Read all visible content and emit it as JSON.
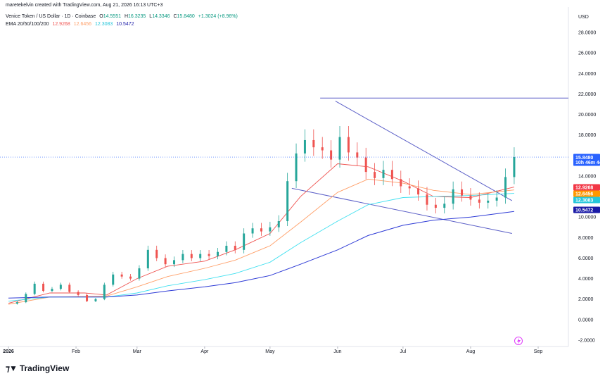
{
  "header": {
    "author_line": "maretekelvin created with TradingView.com, Aug 21, 2026 16:13 UTC+3",
    "symbol": "Venice Token / US Dollar · 1D · Coinbase",
    "o_label": "O",
    "o_value": "14.5551",
    "h_label": "H",
    "h_value": "16.3235",
    "l_label": "L",
    "l_value": "14.3346",
    "c_label": "C",
    "c_value": "15.8480",
    "change": "+1.3024 (+8.96%)",
    "ema_label": "EMA 20/50/100/200",
    "ema20": "12.9268",
    "ema50": "12.6456",
    "ema100": "12.3083",
    "ema200": "10.5472"
  },
  "colors": {
    "up": "#26a69a",
    "down": "#ef5350",
    "ema20": "#ef5350",
    "ema50": "#ff9f68",
    "ema100": "#40e0f0",
    "ema200": "#2e3bd6",
    "trend": "#5b5fc7",
    "price_tag": "#2962ff",
    "header_symbol": "#131722",
    "header_up": "#089981"
  },
  "currency": "USD",
  "brand": "TradingView",
  "chart_data": {
    "type": "candlestick",
    "title": "Venice Token / US Dollar · 1D · Coinbase",
    "yaxis_unit": "USD",
    "ylim": [
      -2,
      29
    ],
    "yticks": [
      "28.0000",
      "26.0000",
      "24.0000",
      "22.0000",
      "20.0000",
      "18.0000",
      "16.0000",
      "14.0000",
      "12.0000",
      "10.0000",
      "8.0000",
      "6.0000",
      "4.0000",
      "2.0000",
      "0.0000",
      "-2.0000"
    ],
    "xticks": [
      "2026",
      "Feb",
      "Mar",
      "Apr",
      "May",
      "Jun",
      "Jul",
      "Aug",
      "Sep"
    ],
    "price_tags": [
      {
        "label": "15.8480",
        "sub": "10h 46m 44s",
        "value": 15.848,
        "color": "#2962ff"
      },
      {
        "label": "12.9268",
        "value": 12.9268,
        "color": "#f23645"
      },
      {
        "label": "12.6456",
        "value": 12.6456,
        "color": "#ff9800"
      },
      {
        "label": "12.3083",
        "value": 12.3083,
        "color": "#26c6da"
      },
      {
        "label": "10.5472",
        "value": 10.5472,
        "color": "#1a1aa6"
      }
    ],
    "close_series": [
      {
        "date": "2026-01-01",
        "close": 1.55
      },
      {
        "date": "2026-01-05",
        "close": 1.7
      },
      {
        "date": "2026-01-09",
        "close": 2.5
      },
      {
        "date": "2026-01-13",
        "close": 3.5
      },
      {
        "date": "2026-01-17",
        "close": 2.8
      },
      {
        "date": "2026-01-21",
        "close": 3.0
      },
      {
        "date": "2026-01-25",
        "close": 3.4
      },
      {
        "date": "2026-01-29",
        "close": 2.7
      },
      {
        "date": "2026-02-02",
        "close": 2.4
      },
      {
        "date": "2026-02-06",
        "close": 1.8
      },
      {
        "date": "2026-02-10",
        "close": 2.0
      },
      {
        "date": "2026-02-14",
        "close": 3.4
      },
      {
        "date": "2026-02-18",
        "close": 4.4
      },
      {
        "date": "2026-02-22",
        "close": 4.2
      },
      {
        "date": "2026-02-26",
        "close": 4.0
      },
      {
        "date": "2026-03-02",
        "close": 5.0
      },
      {
        "date": "2026-03-06",
        "close": 6.8
      },
      {
        "date": "2026-03-10",
        "close": 6.0
      },
      {
        "date": "2026-03-14",
        "close": 5.4
      },
      {
        "date": "2026-03-18",
        "close": 5.8
      },
      {
        "date": "2026-03-22",
        "close": 6.4
      },
      {
        "date": "2026-03-26",
        "close": 6.0
      },
      {
        "date": "2026-03-30",
        "close": 6.4
      },
      {
        "date": "2026-04-03",
        "close": 6.2
      },
      {
        "date": "2026-04-07",
        "close": 6.6
      },
      {
        "date": "2026-04-11",
        "close": 7.2
      },
      {
        "date": "2026-04-15",
        "close": 6.8
      },
      {
        "date": "2026-04-19",
        "close": 8.4
      },
      {
        "date": "2026-04-23",
        "close": 8.9
      },
      {
        "date": "2026-04-27",
        "close": 8.6
      },
      {
        "date": "2026-05-01",
        "close": 9.0
      },
      {
        "date": "2026-05-05",
        "close": 9.6
      },
      {
        "date": "2026-05-09",
        "close": 13.5
      },
      {
        "date": "2026-05-13",
        "close": 16.2
      },
      {
        "date": "2026-05-17",
        "close": 17.5
      },
      {
        "date": "2026-05-21",
        "close": 16.8
      },
      {
        "date": "2026-05-25",
        "close": 16.5
      },
      {
        "date": "2026-05-29",
        "close": 15.6
      },
      {
        "date": "2026-06-02",
        "close": 17.8
      },
      {
        "date": "2026-06-06",
        "close": 16.3
      },
      {
        "date": "2026-06-10",
        "close": 15.8
      },
      {
        "date": "2026-06-14",
        "close": 14.4
      },
      {
        "date": "2026-06-18",
        "close": 13.8
      },
      {
        "date": "2026-06-22",
        "close": 14.6
      },
      {
        "date": "2026-06-26",
        "close": 13.7
      },
      {
        "date": "2026-06-30",
        "close": 13.0
      },
      {
        "date": "2026-07-04",
        "close": 12.8
      },
      {
        "date": "2026-07-08",
        "close": 12.2
      },
      {
        "date": "2026-07-12",
        "close": 11.2
      },
      {
        "date": "2026-07-16",
        "close": 10.9
      },
      {
        "date": "2026-07-20",
        "close": 11.3
      },
      {
        "date": "2026-07-24",
        "close": 12.7
      },
      {
        "date": "2026-07-28",
        "close": 12.1
      },
      {
        "date": "2026-08-01",
        "close": 11.7
      },
      {
        "date": "2026-08-05",
        "close": 11.4
      },
      {
        "date": "2026-08-09",
        "close": 11.6
      },
      {
        "date": "2026-08-13",
        "close": 11.9
      },
      {
        "date": "2026-08-17",
        "close": 13.9
      },
      {
        "date": "2026-08-21",
        "close": 15.848
      }
    ],
    "ema_series": [
      {
        "name": "EMA 20",
        "values": [
          {
            "date": "2026-01-01",
            "value": 1.6
          },
          {
            "date": "2026-01-20",
            "value": 2.6
          },
          {
            "date": "2026-02-05",
            "value": 2.6
          },
          {
            "date": "2026-02-15",
            "value": 2.4
          },
          {
            "date": "2026-03-01",
            "value": 4.0
          },
          {
            "date": "2026-03-15",
            "value": 5.2
          },
          {
            "date": "2026-04-01",
            "value": 5.7
          },
          {
            "date": "2026-04-15",
            "value": 6.8
          },
          {
            "date": "2026-05-01",
            "value": 8.4
          },
          {
            "date": "2026-05-15",
            "value": 12.0
          },
          {
            "date": "2026-06-01",
            "value": 15.2
          },
          {
            "date": "2026-06-15",
            "value": 14.9
          },
          {
            "date": "2026-07-01",
            "value": 13.5
          },
          {
            "date": "2026-07-15",
            "value": 12.0
          },
          {
            "date": "2026-08-01",
            "value": 11.9
          },
          {
            "date": "2026-08-21",
            "value": 12.9268
          }
        ]
      },
      {
        "name": "EMA 50",
        "values": [
          {
            "date": "2026-01-01",
            "value": 1.5
          },
          {
            "date": "2026-01-20",
            "value": 2.2
          },
          {
            "date": "2026-02-15",
            "value": 2.3
          },
          {
            "date": "2026-03-01",
            "value": 3.2
          },
          {
            "date": "2026-03-15",
            "value": 4.2
          },
          {
            "date": "2026-04-01",
            "value": 5.0
          },
          {
            "date": "2026-04-15",
            "value": 5.8
          },
          {
            "date": "2026-05-01",
            "value": 7.2
          },
          {
            "date": "2026-05-15",
            "value": 9.5
          },
          {
            "date": "2026-06-01",
            "value": 12.4
          },
          {
            "date": "2026-06-15",
            "value": 13.7
          },
          {
            "date": "2026-07-01",
            "value": 13.3
          },
          {
            "date": "2026-07-15",
            "value": 12.6
          },
          {
            "date": "2026-08-01",
            "value": 12.2
          },
          {
            "date": "2026-08-21",
            "value": 12.6456
          }
        ]
      },
      {
        "name": "EMA 100",
        "values": [
          {
            "date": "2026-01-01",
            "value": 1.8
          },
          {
            "date": "2026-01-20",
            "value": 2.2
          },
          {
            "date": "2026-02-15",
            "value": 2.2
          },
          {
            "date": "2026-03-01",
            "value": 2.6
          },
          {
            "date": "2026-03-15",
            "value": 3.3
          },
          {
            "date": "2026-04-01",
            "value": 3.9
          },
          {
            "date": "2026-04-15",
            "value": 4.5
          },
          {
            "date": "2026-05-01",
            "value": 5.6
          },
          {
            "date": "2026-05-15",
            "value": 7.5
          },
          {
            "date": "2026-06-01",
            "value": 9.6
          },
          {
            "date": "2026-06-15",
            "value": 11.2
          },
          {
            "date": "2026-07-01",
            "value": 11.9
          },
          {
            "date": "2026-07-15",
            "value": 12.0
          },
          {
            "date": "2026-08-01",
            "value": 12.1
          },
          {
            "date": "2026-08-21",
            "value": 12.3083
          }
        ]
      },
      {
        "name": "EMA 200",
        "values": [
          {
            "date": "2026-01-01",
            "value": 2.1
          },
          {
            "date": "2026-01-20",
            "value": 2.2
          },
          {
            "date": "2026-02-15",
            "value": 2.2
          },
          {
            "date": "2026-03-01",
            "value": 2.4
          },
          {
            "date": "2026-03-15",
            "value": 2.8
          },
          {
            "date": "2026-04-01",
            "value": 3.2
          },
          {
            "date": "2026-04-15",
            "value": 3.6
          },
          {
            "date": "2026-05-01",
            "value": 4.3
          },
          {
            "date": "2026-05-15",
            "value": 5.4
          },
          {
            "date": "2026-06-01",
            "value": 6.8
          },
          {
            "date": "2026-06-15",
            "value": 8.2
          },
          {
            "date": "2026-07-01",
            "value": 9.2
          },
          {
            "date": "2026-07-15",
            "value": 9.7
          },
          {
            "date": "2026-08-01",
            "value": 10.0
          },
          {
            "date": "2026-08-21",
            "value": 10.5472
          }
        ]
      }
    ],
    "annotations": [
      {
        "kind": "horizontal",
        "from": "2026-05-24",
        "to": "2026-09-30",
        "value": 21.6
      },
      {
        "kind": "trendline",
        "from": {
          "date": "2026-05-31",
          "value": 21.3
        },
        "to": {
          "date": "2026-08-20",
          "value": 11.6
        }
      },
      {
        "kind": "trendline",
        "from": {
          "date": "2026-05-11",
          "value": 12.8
        },
        "to": {
          "date": "2026-08-20",
          "value": 8.4
        }
      }
    ],
    "grid": false,
    "legend": "top-left"
  }
}
